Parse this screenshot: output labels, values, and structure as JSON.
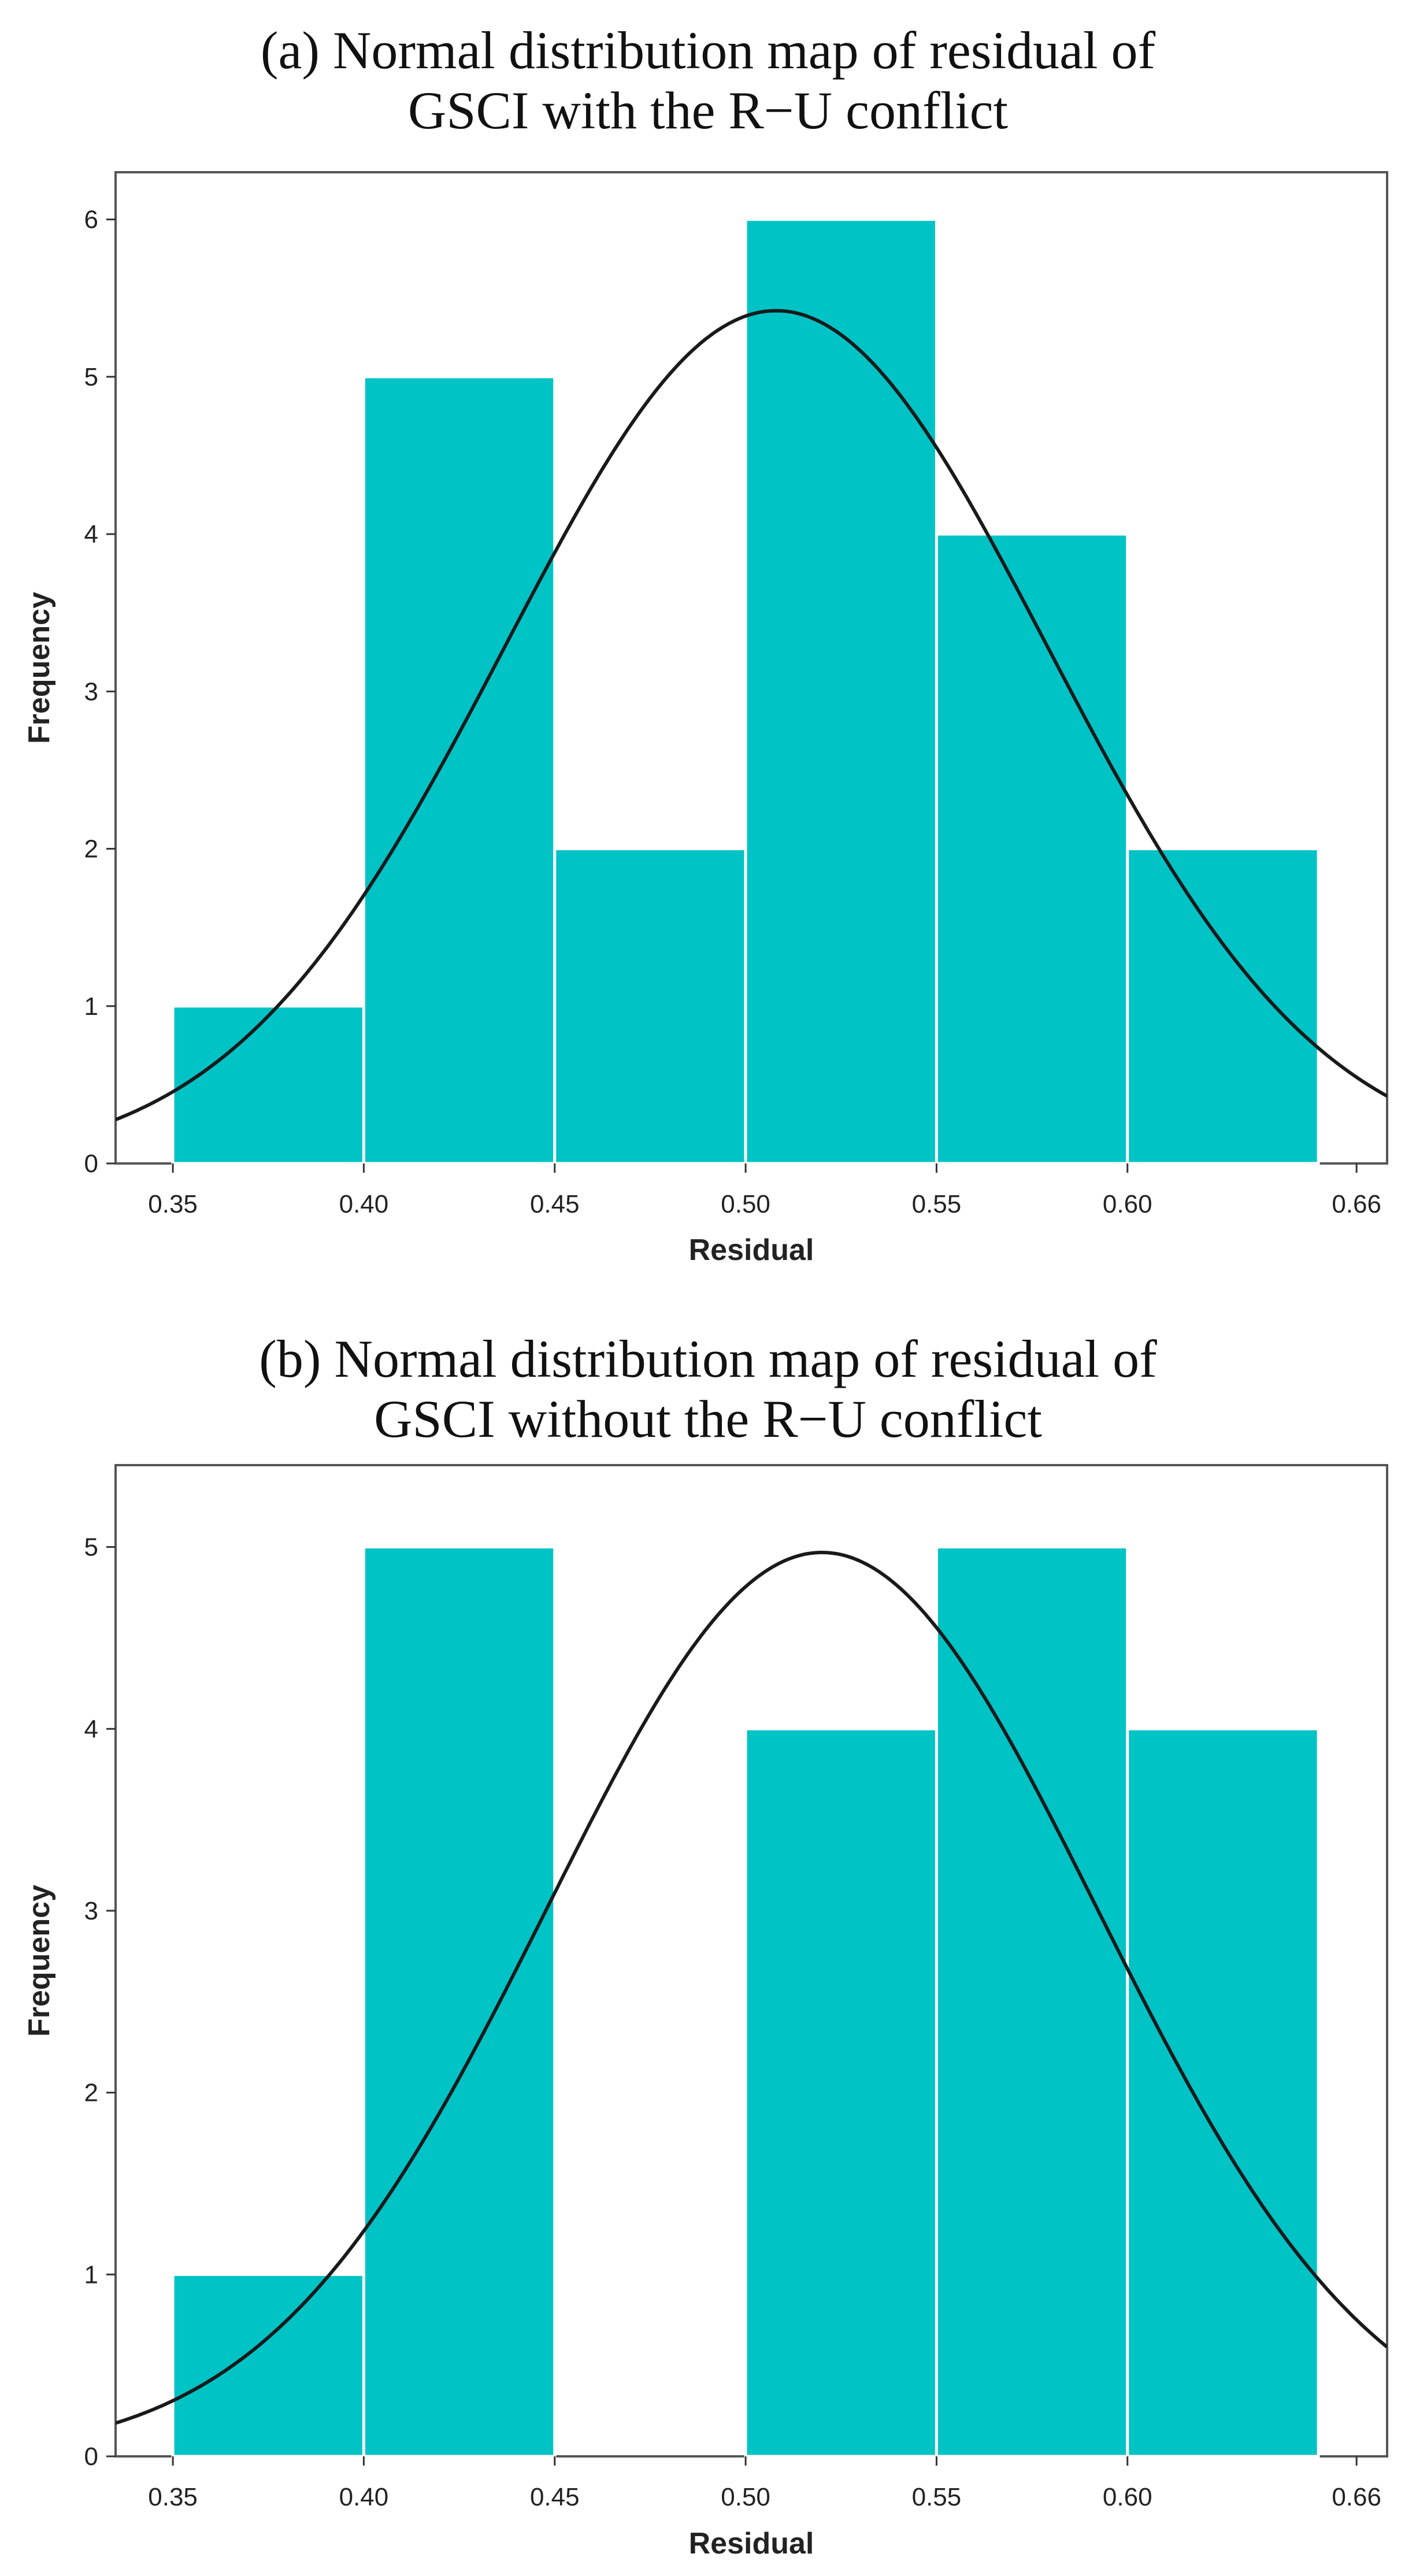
{
  "chart_data": [
    {
      "type": "bar",
      "title": [
        "(a) Normal distribution map of residual of",
        "GSCI with the R−U conflict"
      ],
      "xlabel": "Residual",
      "ylabel": "Frequency",
      "bins": [
        [
          0.35,
          0.4
        ],
        [
          0.4,
          0.45
        ],
        [
          0.45,
          0.5
        ],
        [
          0.5,
          0.55
        ],
        [
          0.55,
          0.6
        ],
        [
          0.6,
          0.65
        ]
      ],
      "values": [
        1,
        5,
        2,
        6,
        4,
        2
      ],
      "xticks": [
        0.35,
        0.4,
        0.45,
        0.5,
        0.55,
        0.6,
        0.66
      ],
      "xtick_labels": [
        "0.35",
        "0.40",
        "0.45",
        "0.50",
        "0.55",
        "0.60",
        "0.66"
      ],
      "yticks": [
        0,
        1,
        2,
        3,
        4,
        5,
        6
      ],
      "xlim": [
        0.335,
        0.668
      ],
      "ylim": [
        0,
        6.3
      ],
      "normal_curve": {
        "mean": 0.508,
        "sd": 0.071,
        "peak": 5.42
      },
      "bar_color": "#00c3c6",
      "curve_color": "#1a1a1a"
    },
    {
      "type": "bar",
      "title": [
        "(b) Normal distribution map of residual of",
        "GSCI without the R−U conflict"
      ],
      "xlabel": "Residual",
      "ylabel": "Frequency",
      "bins": [
        [
          0.35,
          0.4
        ],
        [
          0.4,
          0.45
        ],
        [
          0.45,
          0.5
        ],
        [
          0.5,
          0.55
        ],
        [
          0.55,
          0.6
        ],
        [
          0.6,
          0.65
        ]
      ],
      "values": [
        1,
        5,
        0,
        4,
        5,
        4
      ],
      "xticks": [
        0.35,
        0.4,
        0.45,
        0.5,
        0.55,
        0.6,
        0.66
      ],
      "xtick_labels": [
        "0.35",
        "0.40",
        "0.45",
        "0.50",
        "0.55",
        "0.60",
        "0.66"
      ],
      "yticks": [
        0,
        1,
        2,
        3,
        4,
        5
      ],
      "xlim": [
        0.335,
        0.668
      ],
      "ylim": [
        0,
        5.45
      ],
      "normal_curve": {
        "mean": 0.52,
        "sd": 0.072,
        "peak": 4.97
      },
      "bar_color": "#00c3c6",
      "curve_color": "#1a1a1a"
    }
  ]
}
